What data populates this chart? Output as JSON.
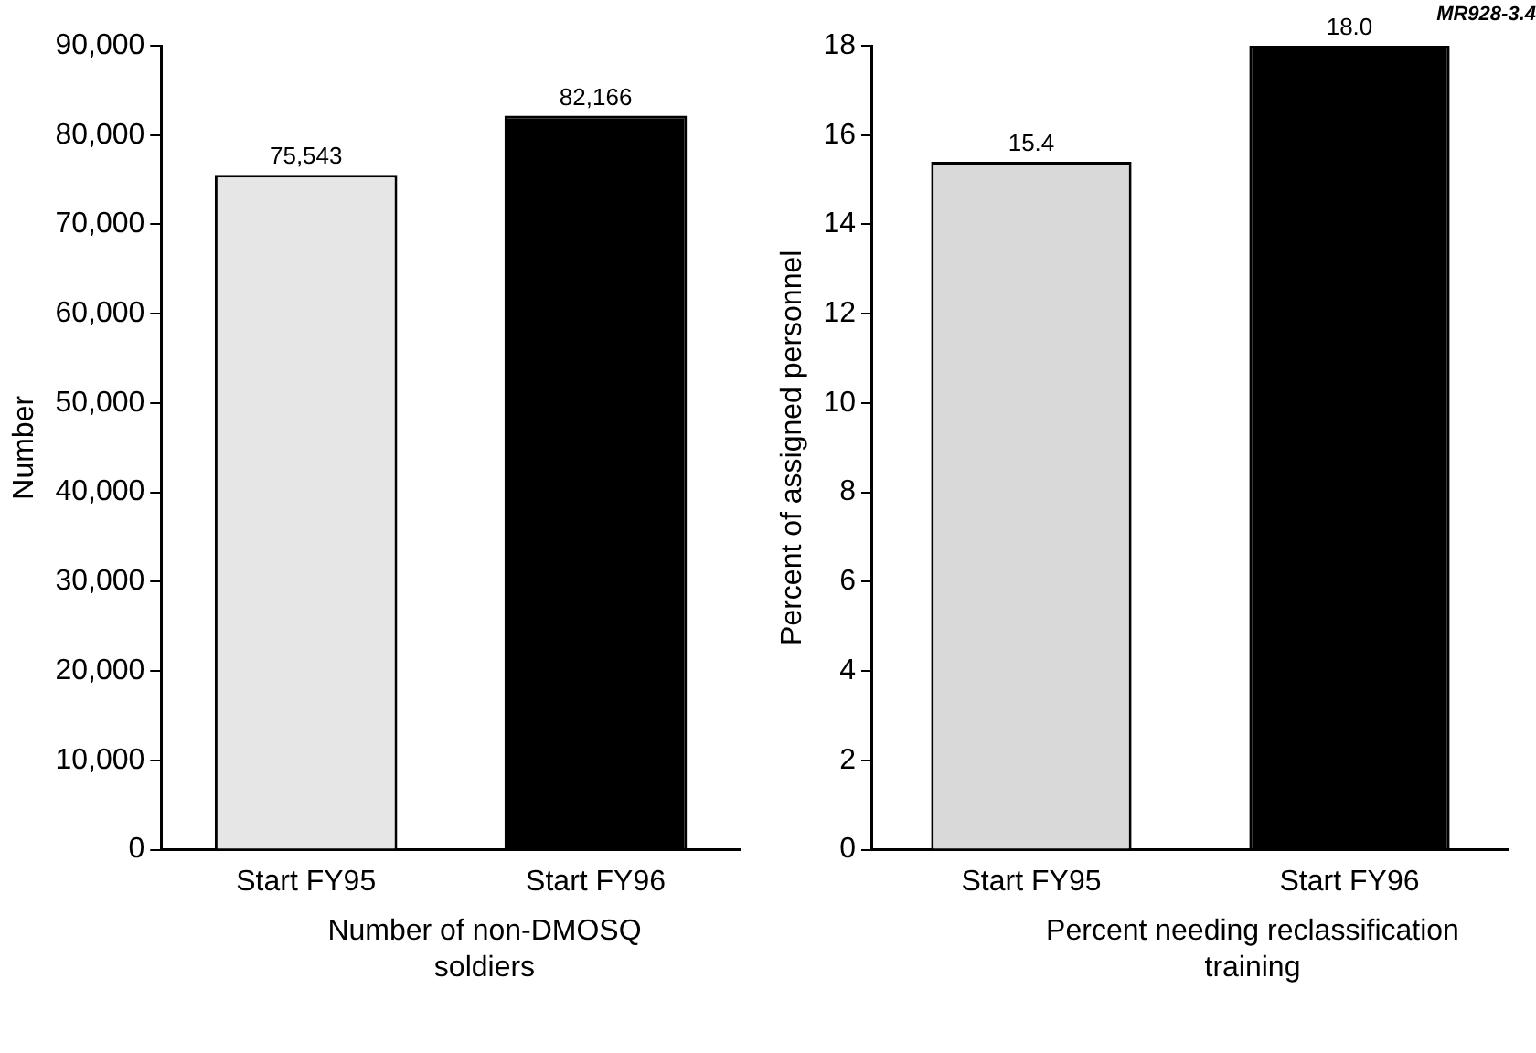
{
  "chart_data": [
    {
      "type": "bar",
      "ylabel": "Number",
      "xlabel": "Number of non-DMOSQ soldiers",
      "categories": [
        "Start FY95",
        "Start FY96"
      ],
      "values": [
        75543,
        82166
      ],
      "value_labels": [
        "75,543",
        "82,166"
      ],
      "colors": [
        "#e6e6e6",
        "#000000"
      ],
      "ylim": [
        0,
        90000
      ],
      "yticks": [
        0,
        {
          "value": 10000,
          "label": "10,000"
        },
        {
          "value": 20000,
          "label": "20,000"
        },
        {
          "value": 30000,
          "label": "30,000"
        },
        {
          "value": 40000,
          "label": "40,000"
        },
        {
          "value": 50000,
          "label": "50,000"
        },
        {
          "value": 60000,
          "label": "60,000"
        },
        {
          "value": 70000,
          "label": "70,000"
        },
        {
          "value": 80000,
          "label": "80,000"
        },
        {
          "value": 90000,
          "label": "90,000"
        }
      ],
      "grid": false,
      "legend": false
    },
    {
      "type": "bar",
      "ylabel": "Percent of assigned personnel",
      "xlabel": "Percent needing reclassification training",
      "categories": [
        "Start FY95",
        "Start FY96"
      ],
      "values": [
        15.4,
        18.0
      ],
      "value_labels": [
        "15.4",
        "18.0"
      ],
      "colors": [
        "#d9d9d9",
        "#000000"
      ],
      "ylim": [
        0,
        18
      ],
      "yticks": [
        0,
        2,
        4,
        6,
        8,
        10,
        12,
        14,
        16,
        18
      ],
      "grid": false,
      "legend": false,
      "annotations": [
        "MR928-3.4"
      ]
    }
  ]
}
